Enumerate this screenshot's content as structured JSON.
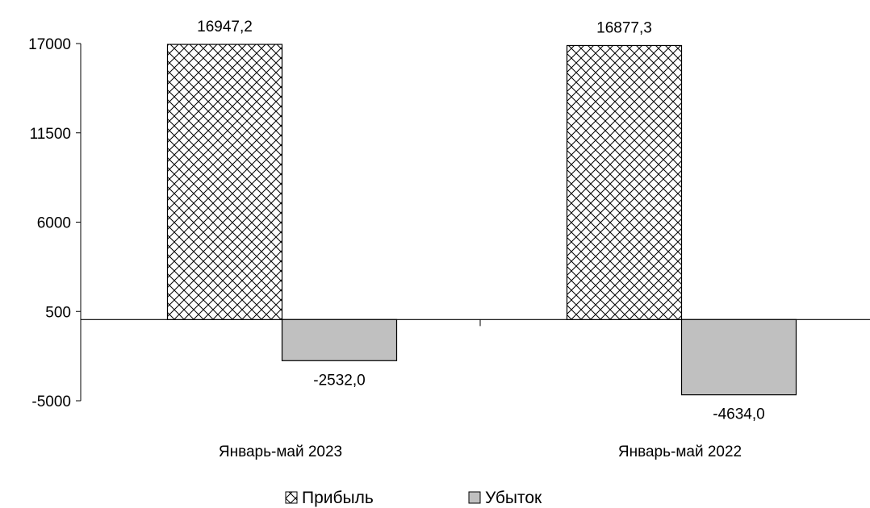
{
  "chart_data": {
    "type": "bar",
    "title": "",
    "xlabel": "",
    "ylabel": "",
    "categories": [
      "Январь-май 2023",
      "Январь-май 2022"
    ],
    "series": [
      {
        "name": "Прибыль",
        "values": [
          16947.2,
          16877.3
        ],
        "labels": [
          "16947,2",
          "16877,3"
        ],
        "pattern": "crosshatch"
      },
      {
        "name": "Убыток",
        "values": [
          -2532.0,
          -4634.0
        ],
        "labels": [
          "-2532,0",
          "-4634,0"
        ],
        "pattern": "solid"
      }
    ],
    "ylim": [
      -5000,
      17000
    ],
    "yticks": [
      17000,
      11500,
      6000,
      500,
      -5000
    ],
    "ytick_labels": [
      "17000",
      "11500",
      "6000",
      "500",
      "-5000"
    ],
    "grid": false,
    "legend_position": "bottom",
    "colors": {
      "profit_fill": "#ffffff",
      "profit_hatch": "#000000",
      "loss_fill": "#c0c0c0",
      "axis": "#000000"
    }
  }
}
